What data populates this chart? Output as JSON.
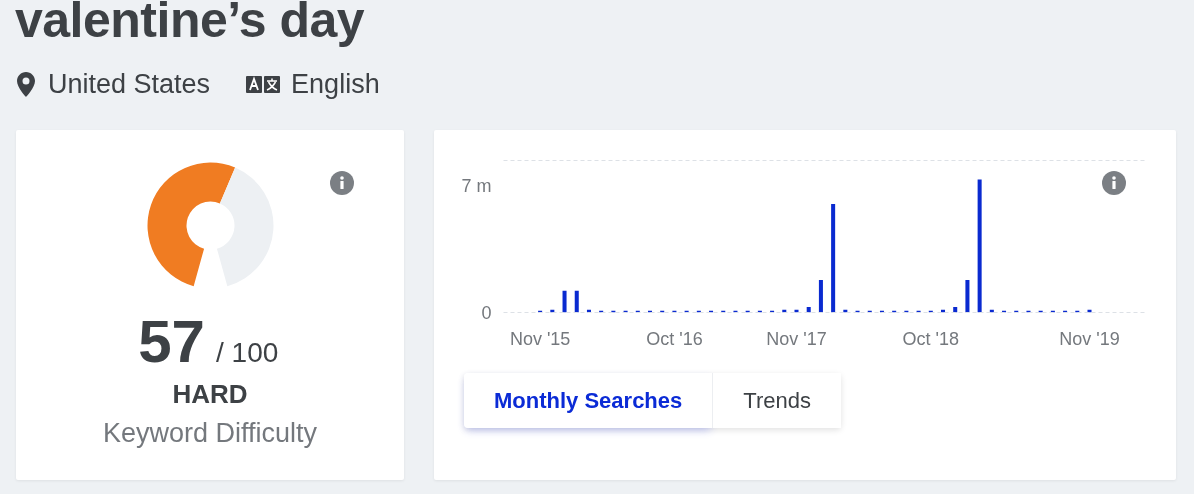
{
  "chart_data": [
    {
      "type": "other",
      "title": "valentine’s day",
      "annotations": [
        "United States",
        "English"
      ]
    },
    {
      "type": "donut",
      "categories": [
        null,
        null
      ],
      "values": [
        57,
        43
      ],
      "colors": [
        "#f07c22",
        "#edf0f3"
      ],
      "annotations": [
        "57",
        "/ 100",
        "HARD",
        "Keyword Difficulty"
      ]
    },
    {
      "type": "bar",
      "categories": [
        "Nov '15",
        null,
        null,
        null,
        null,
        null,
        null,
        null,
        null,
        null,
        null,
        "Oct '16",
        null,
        null,
        null,
        null,
        null,
        null,
        null,
        null,
        null,
        "Nov '17",
        null,
        null,
        null,
        null,
        null,
        null,
        null,
        null,
        null,
        null,
        "Oct '18",
        null,
        null,
        null,
        null,
        null,
        null,
        null,
        null,
        null,
        null,
        null,
        null,
        "Nov '19"
      ],
      "values": [
        0.1,
        0.15,
        1.2,
        1.2,
        0.15,
        0.1,
        0.1,
        0.1,
        0.1,
        0.1,
        0.1,
        0.1,
        0.1,
        0.1,
        0.1,
        0.1,
        0.1,
        0.1,
        0.1,
        0.1,
        0.15,
        0.15,
        0.3,
        1.8,
        6.0,
        0.15,
        0.1,
        0.1,
        0.1,
        0.1,
        0.1,
        0.1,
        0.1,
        0.15,
        0.3,
        1.8,
        7.35,
        0.15,
        0.1,
        0.1,
        0.1,
        0.1,
        0.1,
        0.1,
        0.1,
        0.15
      ],
      "color": "#0a2ad0",
      "ylim": [
        0,
        8.4
      ],
      "yticks": [
        0,
        {
          "value": 7,
          "label": "7 m"
        }
      ],
      "annotations": [
        "Monthly Searches",
        "Trends"
      ]
    }
  ]
}
